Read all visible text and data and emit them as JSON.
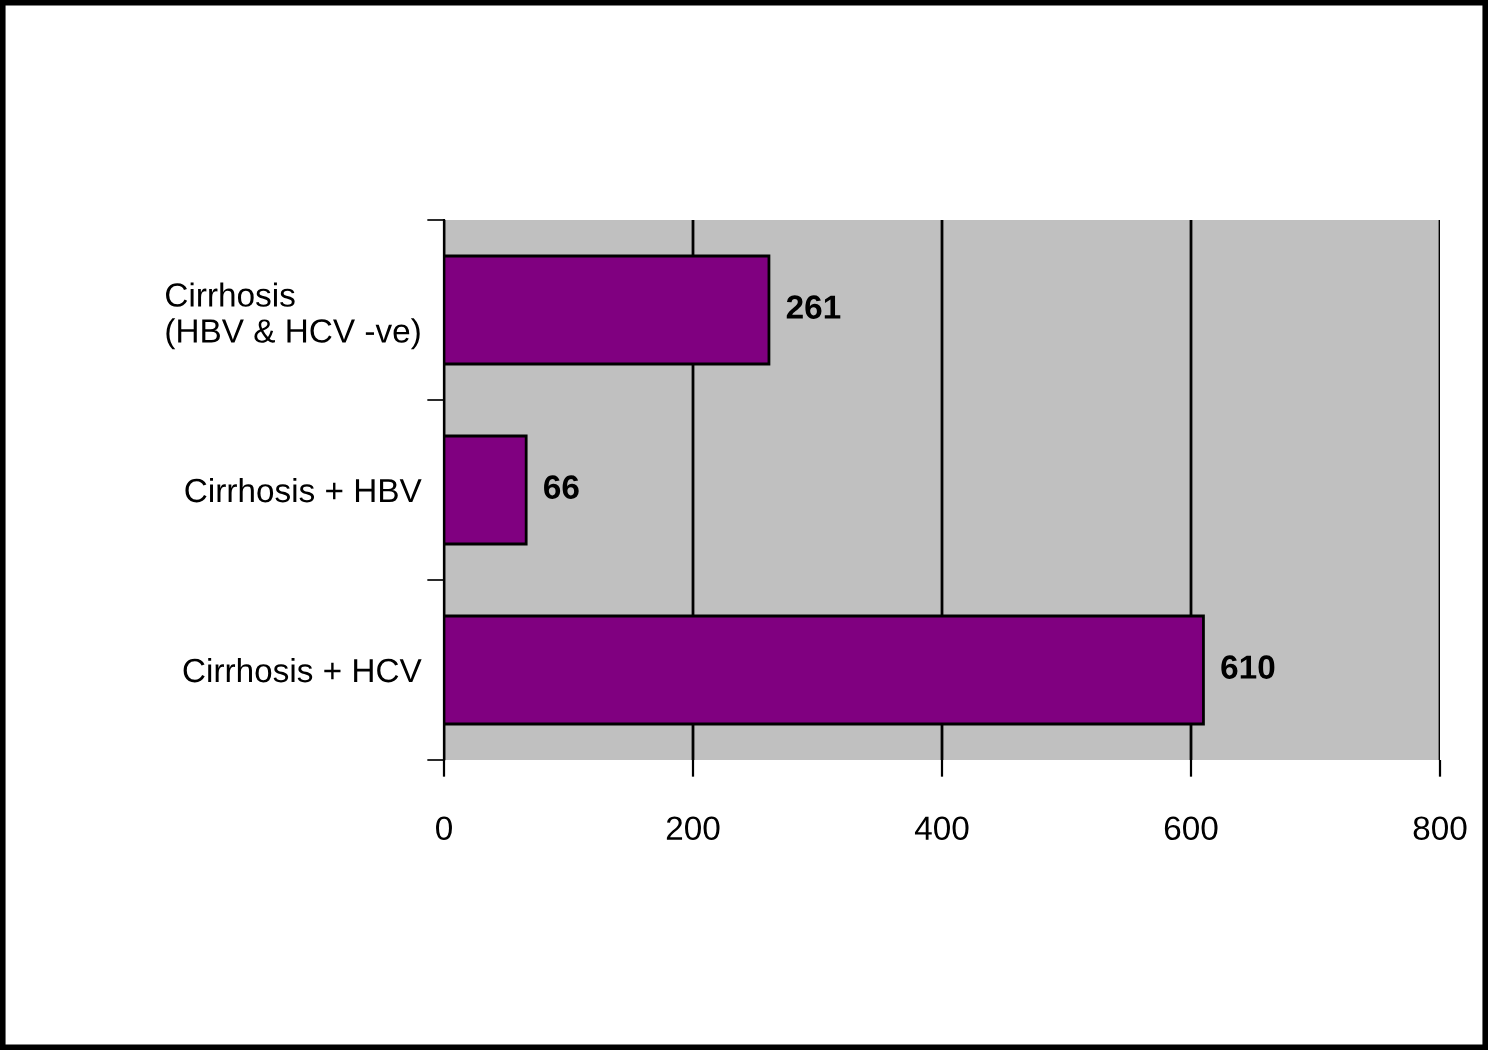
{
  "chart_data": {
    "type": "bar",
    "orientation": "horizontal",
    "categories": [
      "Cirrhosis\n(HBV & HCV -ve)",
      "Cirrhosis + HBV",
      "Cirrhosis + HCV"
    ],
    "values": [
      261,
      66,
      610
    ],
    "color": "#800080",
    "xlim": [
      0,
      800
    ],
    "xticks": [
      0,
      200,
      400,
      600,
      800
    ],
    "grid": "x",
    "data_labels": true
  }
}
